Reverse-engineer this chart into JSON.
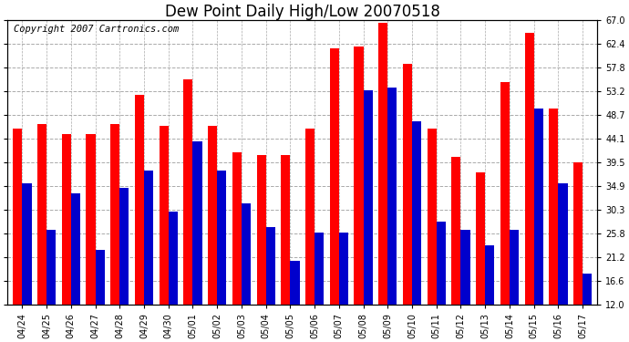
{
  "title": "Dew Point Daily High/Low 20070518",
  "copyright": "Copyright 2007 Cartronics.com",
  "dates": [
    "04/24",
    "04/25",
    "04/26",
    "04/27",
    "04/28",
    "04/29",
    "04/30",
    "05/01",
    "05/02",
    "05/03",
    "05/04",
    "05/05",
    "05/06",
    "05/07",
    "05/08",
    "05/09",
    "05/10",
    "05/11",
    "05/12",
    "05/13",
    "05/14",
    "05/15",
    "05/16",
    "05/17"
  ],
  "highs": [
    46.0,
    47.0,
    45.0,
    45.0,
    47.0,
    52.5,
    46.5,
    55.5,
    46.5,
    41.5,
    41.0,
    41.0,
    46.0,
    61.5,
    62.0,
    66.5,
    58.5,
    46.0,
    40.5,
    37.5,
    55.0,
    64.5,
    50.0,
    39.5
  ],
  "lows": [
    35.5,
    26.5,
    33.5,
    22.5,
    34.5,
    38.0,
    30.0,
    43.5,
    38.0,
    31.5,
    27.0,
    20.5,
    26.0,
    26.0,
    53.5,
    54.0,
    47.5,
    28.0,
    26.5,
    23.5,
    26.5,
    50.0,
    35.5,
    18.0
  ],
  "ylim": [
    12.0,
    67.0
  ],
  "yticks": [
    12.0,
    16.6,
    21.2,
    25.8,
    30.3,
    34.9,
    39.5,
    44.1,
    48.7,
    53.2,
    57.8,
    62.4,
    67.0
  ],
  "high_color": "#ff0000",
  "low_color": "#0000cc",
  "bg_color": "#ffffff",
  "plot_bg_color": "#ffffff",
  "grid_color": "#aaaaaa",
  "bar_width": 0.38,
  "title_fontsize": 12,
  "copyright_fontsize": 7.5
}
